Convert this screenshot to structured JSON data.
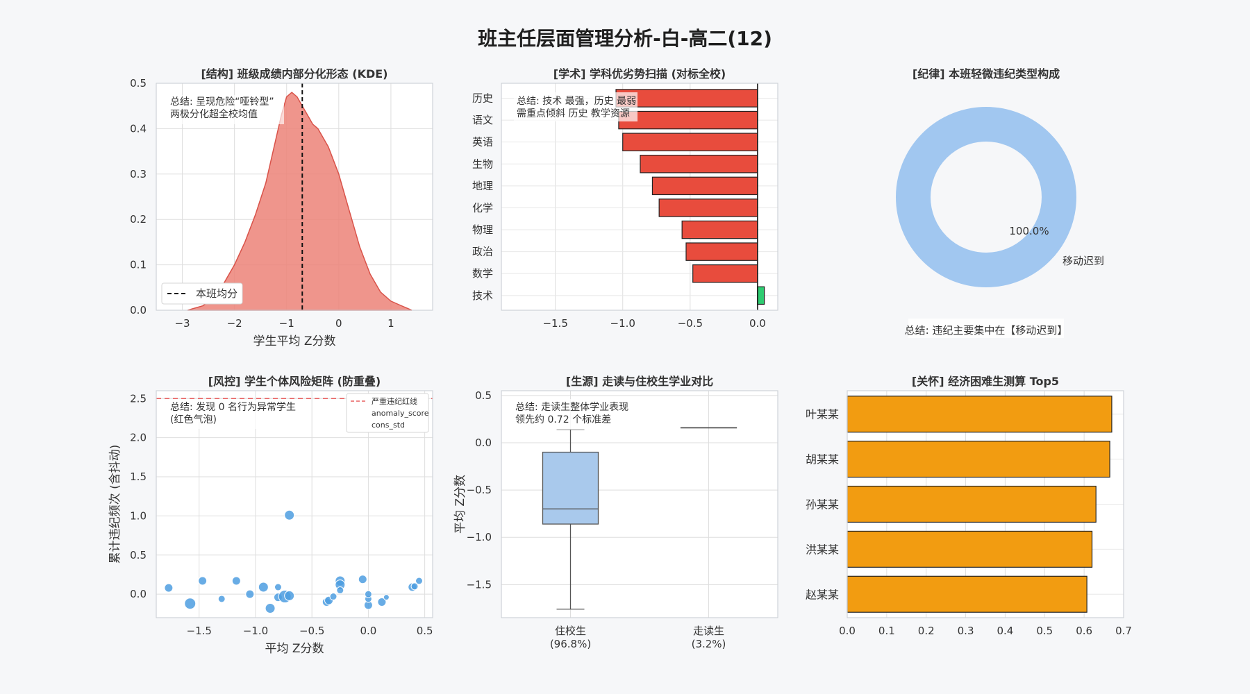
{
  "title": "班主任层面管理分析-白-高二(12)",
  "colors": {
    "kde_fill": "#ec8378",
    "kde_line": "#d9534a",
    "bar_negative": "#e84c3d",
    "bar_positive": "#2ecc71",
    "donut": "#a1c7f0",
    "scatter": "#4e9ee0",
    "box": "#a9c9ec",
    "care_bar": "#f29c11",
    "note_red": "#a52a2a",
    "redline": "#e86060"
  },
  "chart_data": [
    {
      "id": "kde",
      "type": "area",
      "title": "[结构] 班级成绩内部分化形态 (KDE)",
      "xlabel": "学生平均 Z分数",
      "ylabel": "",
      "xlim": [
        -3.5,
        1.8
      ],
      "ylim": [
        0,
        0.5
      ],
      "xticks": [
        -3,
        -2,
        -1,
        0,
        1
      ],
      "yticks": [
        0.0,
        0.1,
        0.2,
        0.3,
        0.4,
        0.5
      ],
      "x": [
        -2.9,
        -2.6,
        -2.4,
        -2.2,
        -2.0,
        -1.8,
        -1.6,
        -1.4,
        -1.3,
        -1.2,
        -1.1,
        -1.0,
        -0.9,
        -0.8,
        -0.7,
        -0.6,
        -0.5,
        -0.4,
        -0.3,
        -0.2,
        -0.1,
        0.0,
        0.1,
        0.2,
        0.3,
        0.4,
        0.5,
        0.6,
        0.7,
        0.8,
        1.0,
        1.2,
        1.4
      ],
      "y": [
        0.0,
        0.01,
        0.03,
        0.06,
        0.1,
        0.15,
        0.21,
        0.28,
        0.33,
        0.38,
        0.43,
        0.47,
        0.48,
        0.47,
        0.45,
        0.43,
        0.41,
        0.4,
        0.38,
        0.36,
        0.33,
        0.3,
        0.26,
        0.22,
        0.18,
        0.14,
        0.11,
        0.08,
        0.06,
        0.04,
        0.02,
        0.01,
        0.0
      ],
      "mean_line": -0.7,
      "legend": "本班均分",
      "legend_position": "lower-left",
      "note": "总结: 呈现危险“哑铃型”\n两极分化超全校均值",
      "grid": true
    },
    {
      "id": "subjects",
      "type": "bar",
      "orientation": "horizontal",
      "title": "[学术] 学科优劣势扫描 (对标全校)",
      "categories": [
        "历史",
        "语文",
        "英语",
        "生物",
        "地理",
        "化学",
        "物理",
        "政治",
        "数学",
        "技术"
      ],
      "values": [
        -1.05,
        -1.03,
        -1.0,
        -0.87,
        -0.78,
        -0.73,
        -0.56,
        -0.53,
        -0.48,
        0.05
      ],
      "xlim": [
        -1.9,
        0.15
      ],
      "xticks": [
        -1.5,
        -1.0,
        -0.5,
        0.0
      ],
      "note": "总结: 技术 最强，历史 最弱\n需重点倾斜 历史 教学资源",
      "grid": true
    },
    {
      "id": "discipline",
      "type": "pie",
      "style": "donut",
      "title": "[纪律] 本班轻微违纪类型构成",
      "labels": [
        "移动迟到"
      ],
      "values": [
        100.0
      ],
      "percent_labels": [
        "100.0%"
      ],
      "note": "总结: 违纪主要集中在【移动迟到】"
    },
    {
      "id": "risk",
      "type": "scatter",
      "title": "[风控] 学生个体风险矩阵 (防重叠)",
      "xlabel": "平均 Z分数",
      "ylabel": "累计违纪频次 (含抖动)",
      "xlim": [
        -1.88,
        0.57
      ],
      "ylim": [
        -0.3,
        2.6
      ],
      "xticks": [
        -1.5,
        -1.0,
        -0.5,
        0.0,
        0.5
      ],
      "yticks": [
        0.0,
        0.5,
        1.0,
        1.5,
        2.0,
        2.5
      ],
      "redline": 2.5,
      "legend": [
        "严重违纪红线",
        "anomaly_score",
        "cons_std"
      ],
      "legend_position": "top-right",
      "note": "总结: 发现 0 名行为异常学生\n(红色气泡)",
      "points": [
        {
          "x": -1.77,
          "y": 0.08,
          "s": 6
        },
        {
          "x": -1.58,
          "y": -0.12,
          "s": 8
        },
        {
          "x": -1.47,
          "y": 0.17,
          "s": 6
        },
        {
          "x": -1.3,
          "y": -0.06,
          "s": 5
        },
        {
          "x": -1.17,
          "y": 0.17,
          "s": 6
        },
        {
          "x": -1.05,
          "y": 0.0,
          "s": 6
        },
        {
          "x": -0.93,
          "y": 0.09,
          "s": 7
        },
        {
          "x": -0.87,
          "y": -0.18,
          "s": 7
        },
        {
          "x": -0.8,
          "y": 0.09,
          "s": 5
        },
        {
          "x": -0.8,
          "y": -0.04,
          "s": 6
        },
        {
          "x": -0.74,
          "y": -0.03,
          "s": 9
        },
        {
          "x": -0.7,
          "y": -0.02,
          "s": 7
        },
        {
          "x": -0.7,
          "y": 1.01,
          "s": 7
        },
        {
          "x": -0.37,
          "y": -0.1,
          "s": 6
        },
        {
          "x": -0.35,
          "y": -0.08,
          "s": 6
        },
        {
          "x": -0.31,
          "y": -0.03,
          "s": 5
        },
        {
          "x": -0.25,
          "y": 0.17,
          "s": 7
        },
        {
          "x": -0.25,
          "y": 0.12,
          "s": 7
        },
        {
          "x": -0.25,
          "y": 0.05,
          "s": 5
        },
        {
          "x": -0.05,
          "y": 0.19,
          "s": 6
        },
        {
          "x": 0.0,
          "y": -0.14,
          "s": 6
        },
        {
          "x": 0.0,
          "y": -0.06,
          "s": 5
        },
        {
          "x": 0.0,
          "y": 0.0,
          "s": 5
        },
        {
          "x": 0.12,
          "y": -0.1,
          "s": 6
        },
        {
          "x": 0.16,
          "y": -0.04,
          "s": 4
        },
        {
          "x": 0.39,
          "y": 0.09,
          "s": 6
        },
        {
          "x": 0.41,
          "y": 0.1,
          "s": 5
        },
        {
          "x": 0.45,
          "y": 0.17,
          "s": 5
        }
      ],
      "grid": true
    },
    {
      "id": "boarding",
      "type": "box",
      "title": "[生源] 走读与住校生学业对比",
      "ylabel": "平均 Z分数",
      "ylim": [
        -1.85,
        0.55
      ],
      "yticks": [
        -1.5,
        -1.0,
        -0.5,
        0.0,
        0.5
      ],
      "categories": [
        "住校生\n(96.8%)",
        "走读生\n(3.2%)"
      ],
      "boxes": [
        {
          "whisker_low": -1.76,
          "q1": -0.86,
          "median": -0.7,
          "q3": -0.1,
          "whisker_high": 0.14
        },
        {
          "whisker_low": 0.16,
          "q1": 0.16,
          "median": 0.16,
          "q3": 0.16,
          "whisker_high": 0.16
        }
      ],
      "note": "总结: 走读生整体学业表现\n领先约 0.72 个标准差",
      "grid": true
    },
    {
      "id": "care",
      "type": "bar",
      "orientation": "horizontal",
      "title": "[关怀] 经济困难生测算 Top5",
      "categories": [
        "叶某某",
        "胡某某",
        "孙某某",
        "洪某某",
        "赵某某"
      ],
      "values": [
        0.67,
        0.665,
        0.63,
        0.62,
        0.607
      ],
      "xlim": [
        0.0,
        0.7
      ],
      "xticks": [
        0.0,
        0.1,
        0.2,
        0.3,
        0.4,
        0.5,
        0.6,
        0.7
      ],
      "grid": true
    }
  ]
}
